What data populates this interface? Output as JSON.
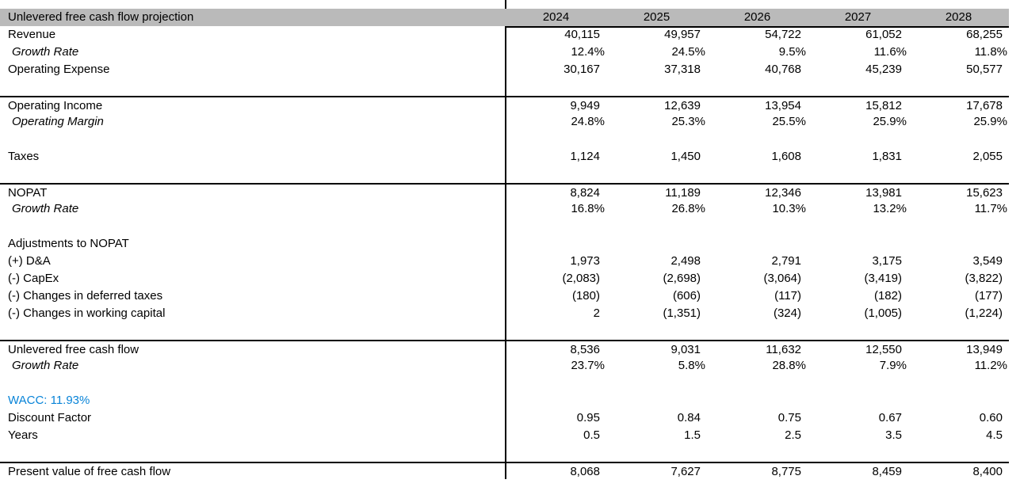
{
  "colors": {
    "header_bg": "#bababa",
    "rule": "#000000",
    "wacc_blue": "#0984d8",
    "text": "#000000"
  },
  "table": {
    "title": "Unlevered free cash flow projection",
    "years": [
      "2024",
      "2025",
      "2026",
      "2027",
      "2028"
    ],
    "rows": [
      {
        "label": "Revenue",
        "style": "normal",
        "format": "num",
        "rule_above": false,
        "values": [
          "40,115",
          "49,957",
          "54,722",
          "61,052",
          "68,255"
        ]
      },
      {
        "label": "Growth Rate",
        "style": "italic",
        "format": "pct",
        "rule_above": false,
        "values": [
          "12.4%",
          "24.5%",
          "9.5%",
          "11.6%",
          "11.8%"
        ]
      },
      {
        "label": "Operating Expense",
        "style": "normal",
        "format": "num",
        "rule_above": false,
        "values": [
          "30,167",
          "37,318",
          "40,768",
          "45,239",
          "50,577"
        ]
      },
      {
        "label": "",
        "style": "blank",
        "format": "num",
        "rule_above": false,
        "values": [
          "",
          "",
          "",
          "",
          ""
        ]
      },
      {
        "label": "Operating Income",
        "style": "normal",
        "format": "num",
        "rule_above": true,
        "values": [
          "9,949",
          "12,639",
          "13,954",
          "15,812",
          "17,678"
        ]
      },
      {
        "label": "Operating Margin",
        "style": "italic",
        "format": "pct",
        "rule_above": false,
        "values": [
          "24.8%",
          "25.3%",
          "25.5%",
          "25.9%",
          "25.9%"
        ]
      },
      {
        "label": "",
        "style": "blank",
        "format": "num",
        "rule_above": false,
        "values": [
          "",
          "",
          "",
          "",
          ""
        ]
      },
      {
        "label": "Taxes",
        "style": "normal",
        "format": "num",
        "rule_above": false,
        "values": [
          "1,124",
          "1,450",
          "1,608",
          "1,831",
          "2,055"
        ]
      },
      {
        "label": "",
        "style": "blank",
        "format": "num",
        "rule_above": false,
        "values": [
          "",
          "",
          "",
          "",
          ""
        ]
      },
      {
        "label": "NOPAT",
        "style": "normal",
        "format": "num",
        "rule_above": true,
        "values": [
          "8,824",
          "11,189",
          "12,346",
          "13,981",
          "15,623"
        ]
      },
      {
        "label": "Growth Rate",
        "style": "italic",
        "format": "pct",
        "rule_above": false,
        "values": [
          "16.8%",
          "26.8%",
          "10.3%",
          "13.2%",
          "11.7%"
        ]
      },
      {
        "label": "",
        "style": "blank",
        "format": "num",
        "rule_above": false,
        "values": [
          "",
          "",
          "",
          "",
          ""
        ]
      },
      {
        "label": "Adjustments to NOPAT",
        "style": "normal",
        "format": "num",
        "rule_above": false,
        "values": [
          "",
          "",
          "",
          "",
          ""
        ]
      },
      {
        "label": "(+) D&A",
        "style": "normal",
        "format": "num",
        "rule_above": false,
        "values": [
          "1,973",
          "2,498",
          "2,791",
          "3,175",
          "3,549"
        ]
      },
      {
        "label": "(-) CapEx",
        "style": "normal",
        "format": "num",
        "rule_above": false,
        "values": [
          "(2,083)",
          "(2,698)",
          "(3,064)",
          "(3,419)",
          "(3,822)"
        ]
      },
      {
        "label": "(-) Changes in deferred taxes",
        "style": "normal",
        "format": "num",
        "rule_above": false,
        "values": [
          "(180)",
          "(606)",
          "(117)",
          "(182)",
          "(177)"
        ]
      },
      {
        "label": "(-) Changes in working capital",
        "style": "normal",
        "format": "num",
        "rule_above": false,
        "values": [
          "2",
          "(1,351)",
          "(324)",
          "(1,005)",
          "(1,224)"
        ]
      },
      {
        "label": "",
        "style": "blank",
        "format": "num",
        "rule_above": false,
        "values": [
          "",
          "",
          "",
          "",
          ""
        ]
      },
      {
        "label": "Unlevered free cash flow",
        "style": "normal",
        "format": "num",
        "rule_above": true,
        "values": [
          "8,536",
          "9,031",
          "11,632",
          "12,550",
          "13,949"
        ]
      },
      {
        "label": "Growth Rate",
        "style": "italic",
        "format": "pct",
        "rule_above": false,
        "values": [
          "23.7%",
          "5.8%",
          "28.8%",
          "7.9%",
          "11.2%"
        ]
      },
      {
        "label": "",
        "style": "blank",
        "format": "num",
        "rule_above": false,
        "values": [
          "",
          "",
          "",
          "",
          ""
        ]
      },
      {
        "label": "WACC: 11.93%",
        "style": "wacc",
        "format": "num",
        "rule_above": false,
        "values": [
          "",
          "",
          "",
          "",
          ""
        ]
      },
      {
        "label": "Discount Factor",
        "style": "normal",
        "format": "num",
        "rule_above": false,
        "values": [
          "0.95",
          "0.84",
          "0.75",
          "0.67",
          "0.60"
        ]
      },
      {
        "label": "Years",
        "style": "normal",
        "format": "num",
        "rule_above": false,
        "values": [
          "0.5",
          "1.5",
          "2.5",
          "3.5",
          "4.5"
        ]
      },
      {
        "label": "",
        "style": "blank",
        "format": "num",
        "rule_above": false,
        "values": [
          "",
          "",
          "",
          "",
          ""
        ]
      },
      {
        "label": "Present value of free cash flow",
        "style": "normal",
        "format": "num",
        "rule_above": true,
        "values": [
          "8,068",
          "7,627",
          "8,775",
          "8,459",
          "8,400"
        ]
      }
    ]
  }
}
